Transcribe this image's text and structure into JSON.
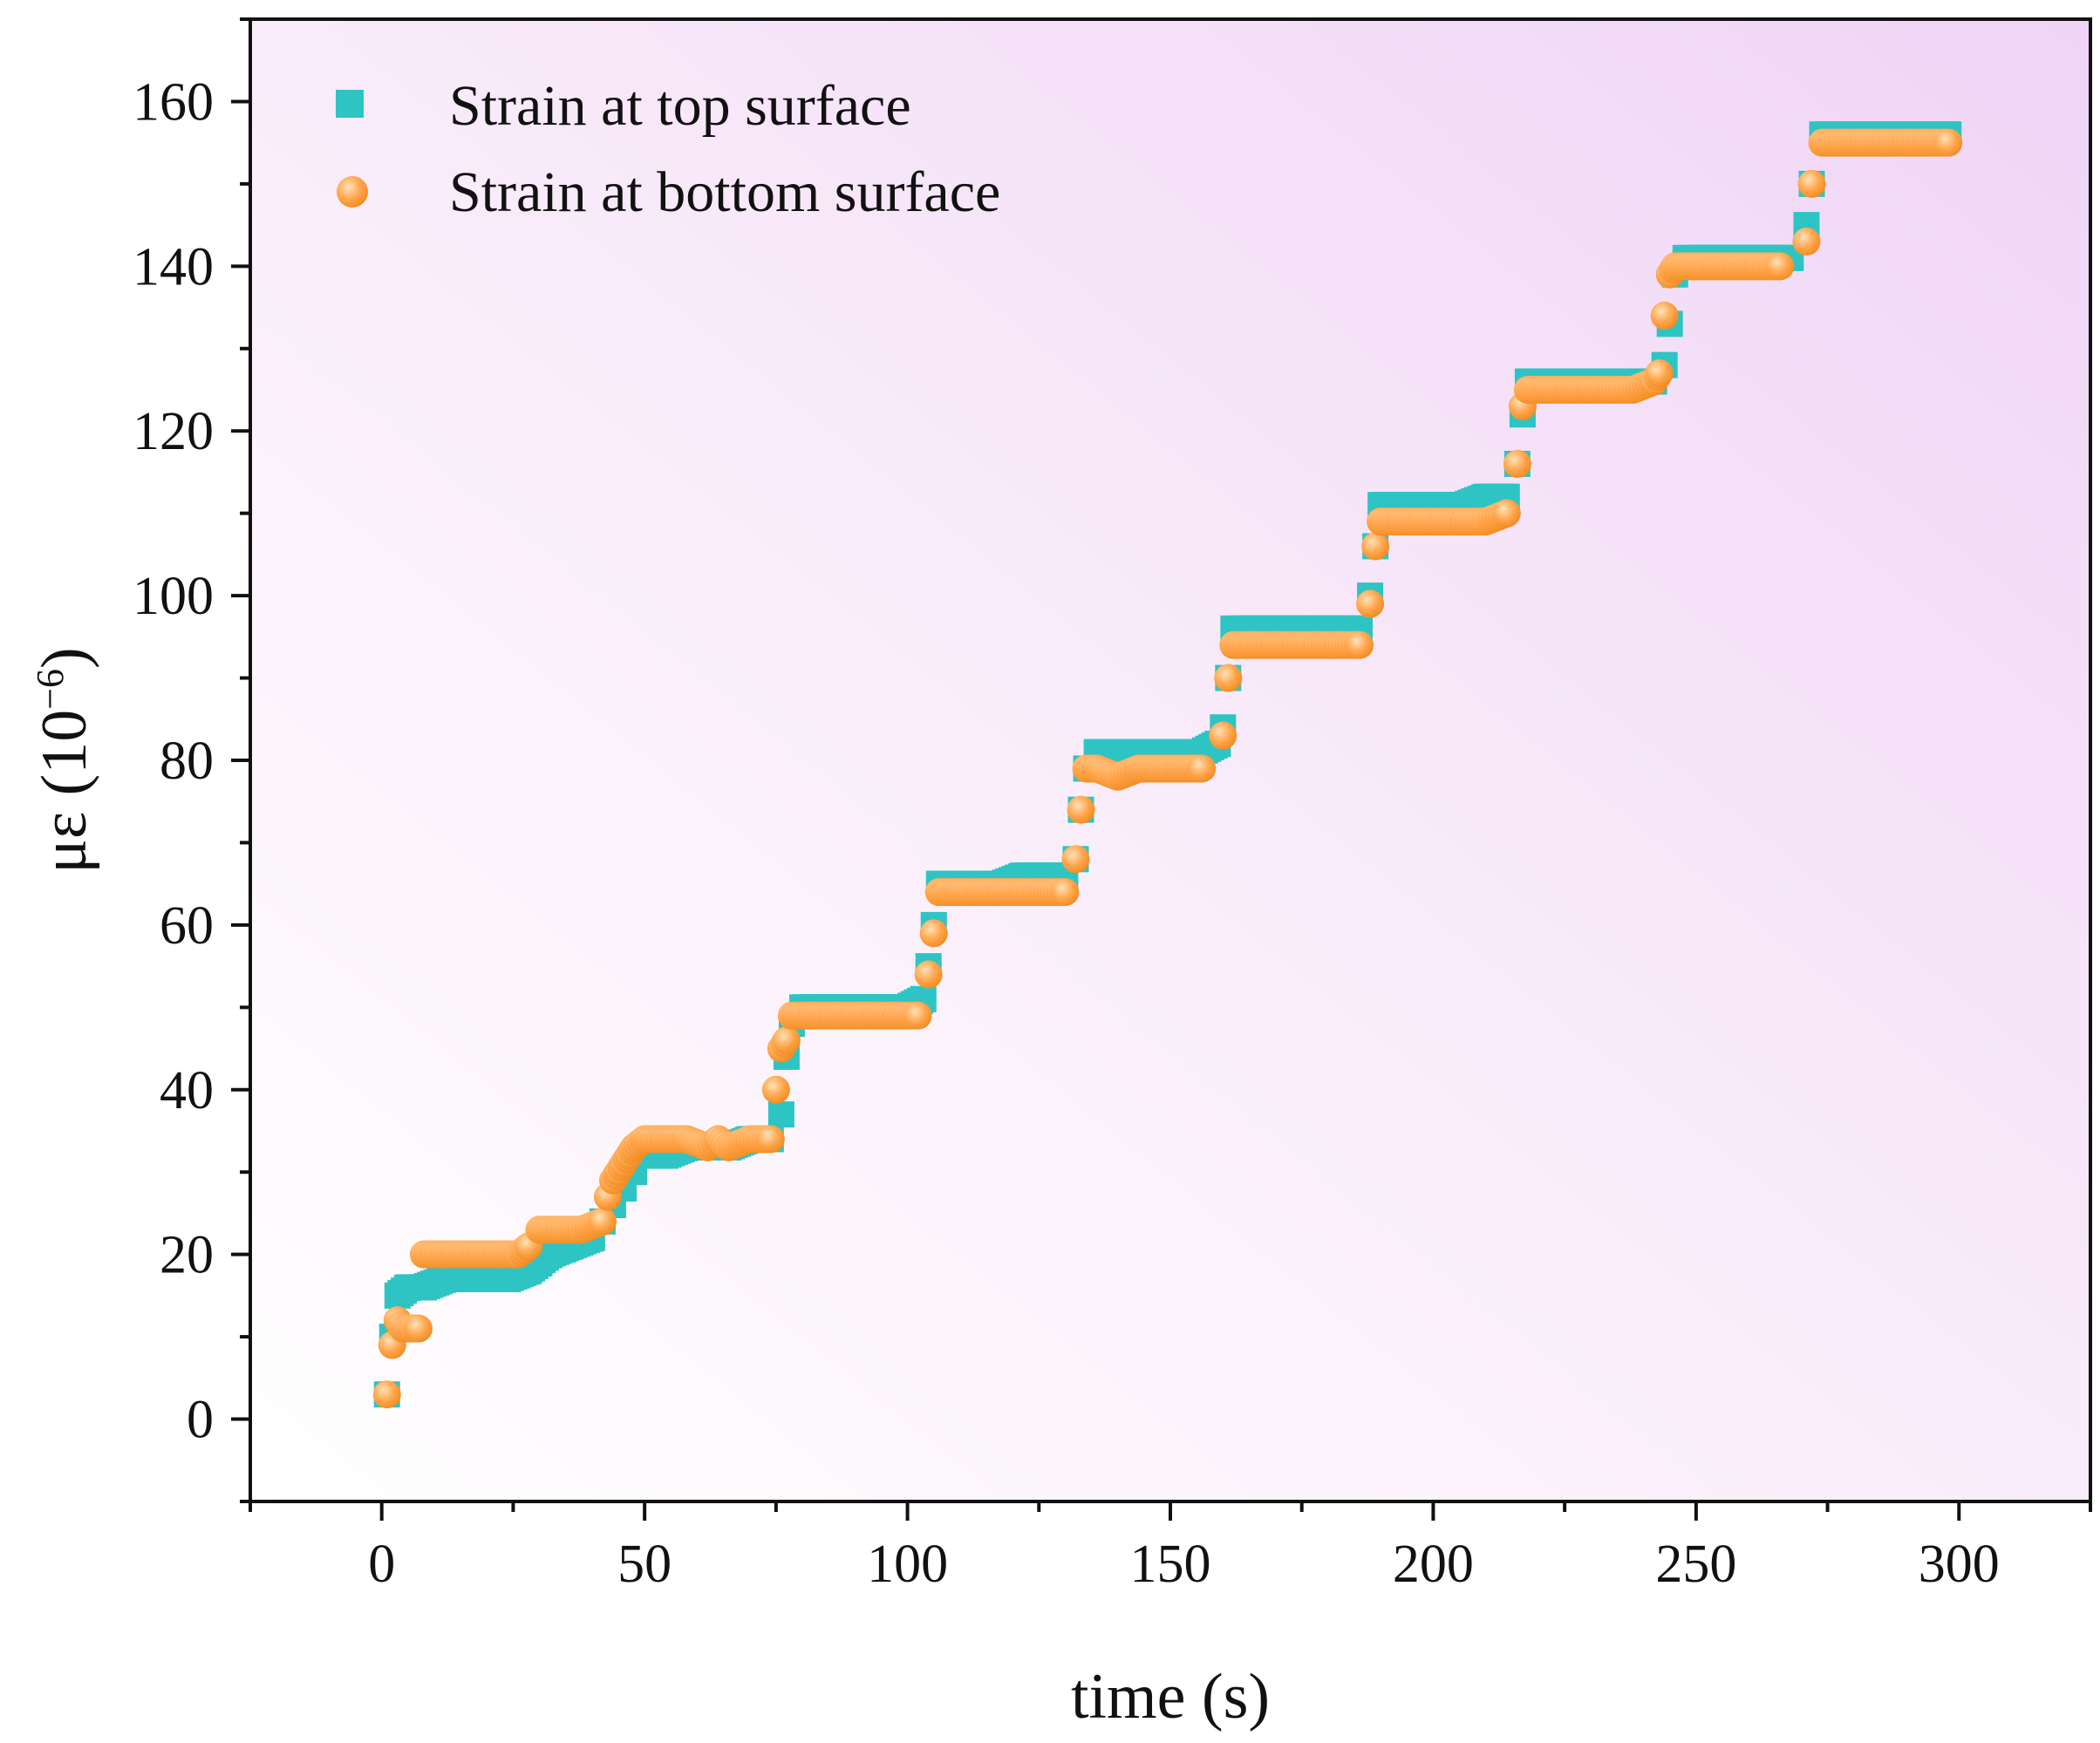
{
  "chart_data": {
    "type": "scatter",
    "title": "",
    "xlabel": "time (s)",
    "ylabel_main": "με (10",
    "ylabel_exp": "−6",
    "ylabel_close": ")",
    "xlim": [
      -25,
      325
    ],
    "ylim": [
      -10,
      170
    ],
    "xticks": [
      0,
      50,
      100,
      150,
      200,
      250,
      300
    ],
    "yticks": [
      0,
      20,
      40,
      60,
      80,
      100,
      120,
      140,
      160
    ],
    "xtick_labels": [
      "0",
      "50",
      "100",
      "150",
      "200",
      "250",
      "300"
    ],
    "ytick_labels": [
      "0",
      "20",
      "40",
      "60",
      "80",
      "100",
      "120",
      "140",
      "160"
    ],
    "legend_position": "top-left",
    "grid": false,
    "series": [
      {
        "name": "Strain at top surface",
        "marker": "square",
        "color": "#2EC4C4",
        "points": [
          [
            1,
            3
          ],
          [
            2,
            10
          ],
          [
            3,
            15
          ],
          [
            5,
            16
          ],
          [
            8,
            16
          ],
          [
            12,
            17
          ],
          [
            16,
            17
          ],
          [
            20,
            17
          ],
          [
            24,
            17
          ],
          [
            28,
            18
          ],
          [
            30,
            19
          ],
          [
            32,
            20
          ],
          [
            36,
            21
          ],
          [
            40,
            22
          ],
          [
            42,
            24
          ],
          [
            44,
            26
          ],
          [
            46,
            28
          ],
          [
            48,
            30
          ],
          [
            50,
            32
          ],
          [
            54,
            32
          ],
          [
            58,
            33
          ],
          [
            62,
            33
          ],
          [
            66,
            33
          ],
          [
            70,
            34
          ],
          [
            74,
            34
          ],
          [
            76,
            37
          ],
          [
            77,
            44
          ],
          [
            78,
            48
          ],
          [
            80,
            50
          ],
          [
            84,
            50
          ],
          [
            88,
            50
          ],
          [
            92,
            50
          ],
          [
            96,
            50
          ],
          [
            100,
            50
          ],
          [
            103,
            51
          ],
          [
            104,
            55
          ],
          [
            105,
            60
          ],
          [
            106,
            65
          ],
          [
            110,
            65
          ],
          [
            114,
            65
          ],
          [
            118,
            65
          ],
          [
            122,
            66
          ],
          [
            126,
            66
          ],
          [
            130,
            66
          ],
          [
            132,
            68
          ],
          [
            133,
            74
          ],
          [
            134,
            79
          ],
          [
            136,
            81
          ],
          [
            140,
            81
          ],
          [
            144,
            81
          ],
          [
            148,
            81
          ],
          [
            152,
            81
          ],
          [
            156,
            81
          ],
          [
            159,
            82
          ],
          [
            160,
            84
          ],
          [
            161,
            90
          ],
          [
            162,
            96
          ],
          [
            166,
            96
          ],
          [
            170,
            96
          ],
          [
            174,
            96
          ],
          [
            178,
            96
          ],
          [
            182,
            96
          ],
          [
            186,
            96
          ],
          [
            188,
            100
          ],
          [
            189,
            106
          ],
          [
            190,
            111
          ],
          [
            194,
            111
          ],
          [
            198,
            111
          ],
          [
            202,
            111
          ],
          [
            206,
            111
          ],
          [
            210,
            112
          ],
          [
            214,
            112
          ],
          [
            216,
            116
          ],
          [
            217,
            122
          ],
          [
            218,
            126
          ],
          [
            222,
            126
          ],
          [
            226,
            126
          ],
          [
            230,
            126
          ],
          [
            234,
            126
          ],
          [
            238,
            126
          ],
          [
            242,
            126
          ],
          [
            244,
            128
          ],
          [
            245,
            133
          ],
          [
            246,
            139
          ],
          [
            248,
            141
          ],
          [
            252,
            141
          ],
          [
            256,
            141
          ],
          [
            260,
            141
          ],
          [
            264,
            141
          ],
          [
            268,
            141
          ],
          [
            271,
            145
          ],
          [
            272,
            150
          ],
          [
            274,
            156
          ],
          [
            278,
            156
          ],
          [
            282,
            156
          ],
          [
            286,
            156
          ],
          [
            290,
            156
          ],
          [
            294,
            156
          ],
          [
            298,
            156
          ]
        ]
      },
      {
        "name": "Strain at bottom surface",
        "marker": "circle",
        "color": "#FF9933",
        "points": [
          [
            1,
            3
          ],
          [
            2,
            9
          ],
          [
            3,
            12
          ],
          [
            4,
            11
          ],
          [
            6,
            11
          ],
          [
            7,
            11
          ],
          [
            8,
            20
          ],
          [
            10,
            20
          ],
          [
            14,
            20
          ],
          [
            18,
            20
          ],
          [
            22,
            20
          ],
          [
            26,
            20
          ],
          [
            28,
            21
          ],
          [
            30,
            23
          ],
          [
            34,
            23
          ],
          [
            38,
            23
          ],
          [
            42,
            24
          ],
          [
            43,
            27
          ],
          [
            44,
            29
          ],
          [
            45,
            30
          ],
          [
            46,
            31
          ],
          [
            47,
            32
          ],
          [
            48,
            33
          ],
          [
            50,
            34
          ],
          [
            54,
            34
          ],
          [
            58,
            34
          ],
          [
            62,
            33
          ],
          [
            64,
            34
          ],
          [
            66,
            33
          ],
          [
            70,
            34
          ],
          [
            74,
            34
          ],
          [
            75,
            40
          ],
          [
            76,
            45
          ],
          [
            77,
            46
          ],
          [
            78,
            49
          ],
          [
            82,
            49
          ],
          [
            86,
            49
          ],
          [
            90,
            49
          ],
          [
            94,
            49
          ],
          [
            98,
            49
          ],
          [
            102,
            49
          ],
          [
            104,
            54
          ],
          [
            105,
            59
          ],
          [
            106,
            64
          ],
          [
            110,
            64
          ],
          [
            114,
            64
          ],
          [
            118,
            64
          ],
          [
            122,
            64
          ],
          [
            126,
            64
          ],
          [
            130,
            64
          ],
          [
            132,
            68
          ],
          [
            133,
            74
          ],
          [
            134,
            79
          ],
          [
            136,
            79
          ],
          [
            140,
            78
          ],
          [
            144,
            79
          ],
          [
            148,
            79
          ],
          [
            152,
            79
          ],
          [
            156,
            79
          ],
          [
            160,
            83
          ],
          [
            161,
            90
          ],
          [
            162,
            94
          ],
          [
            166,
            94
          ],
          [
            170,
            94
          ],
          [
            174,
            94
          ],
          [
            178,
            94
          ],
          [
            182,
            94
          ],
          [
            186,
            94
          ],
          [
            188,
            99
          ],
          [
            189,
            106
          ],
          [
            190,
            109
          ],
          [
            194,
            109
          ],
          [
            198,
            109
          ],
          [
            202,
            109
          ],
          [
            206,
            109
          ],
          [
            210,
            109
          ],
          [
            214,
            110
          ],
          [
            216,
            116
          ],
          [
            217,
            123
          ],
          [
            218,
            125
          ],
          [
            222,
            125
          ],
          [
            226,
            125
          ],
          [
            230,
            125
          ],
          [
            234,
            125
          ],
          [
            238,
            125
          ],
          [
            242,
            126
          ],
          [
            243,
            127
          ],
          [
            244,
            134
          ],
          [
            245,
            139
          ],
          [
            246,
            140
          ],
          [
            250,
            140
          ],
          [
            254,
            140
          ],
          [
            258,
            140
          ],
          [
            262,
            140
          ],
          [
            266,
            140
          ],
          [
            271,
            143
          ],
          [
            272,
            150
          ],
          [
            274,
            155
          ],
          [
            278,
            155
          ],
          [
            282,
            155
          ],
          [
            286,
            155
          ],
          [
            290,
            155
          ],
          [
            294,
            155
          ],
          [
            298,
            155
          ]
        ]
      }
    ]
  }
}
